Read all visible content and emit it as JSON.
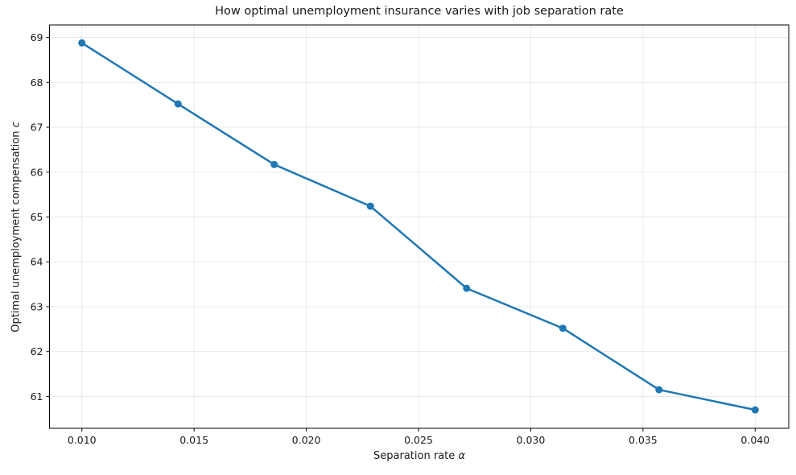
{
  "figure": {
    "title": "How optimal unemployment insurance varies with job separation rate",
    "xlabel_prefix": "Separation rate ",
    "xlabel_symbol": "α",
    "ylabel_prefix": "Optimal unemployment compensation ",
    "ylabel_symbol": "c"
  },
  "chart_data": {
    "type": "line",
    "title": "How optimal unemployment insurance varies with job separation rate",
    "xlabel": "Separation rate α",
    "ylabel": "Optimal unemployment compensation c",
    "x": [
      0.01,
      0.014286,
      0.018571,
      0.022857,
      0.027143,
      0.031429,
      0.035714,
      0.04
    ],
    "y": [
      68.88,
      67.52,
      66.17,
      65.24,
      63.41,
      62.52,
      61.15,
      60.7
    ],
    "x_ticks": [
      0.01,
      0.015,
      0.02,
      0.025,
      0.03,
      0.035,
      0.04
    ],
    "x_tick_labels": [
      "0.010",
      "0.015",
      "0.020",
      "0.025",
      "0.030",
      "0.035",
      "0.040"
    ],
    "y_ticks": [
      61,
      62,
      63,
      64,
      65,
      66,
      67,
      68,
      69
    ],
    "y_tick_labels": [
      "61",
      "62",
      "63",
      "64",
      "65",
      "66",
      "67",
      "68",
      "69"
    ],
    "xlim": [
      0.008558,
      0.041495
    ],
    "ylim": [
      60.29,
      69.28
    ],
    "grid": true,
    "legend": null,
    "line_color": "#1f77b4",
    "marker": "circle",
    "grid_color": "#b0b0b0",
    "grid_opacity": 0.3,
    "spine_color": "#000000",
    "text_color": "#1a1a1a"
  }
}
